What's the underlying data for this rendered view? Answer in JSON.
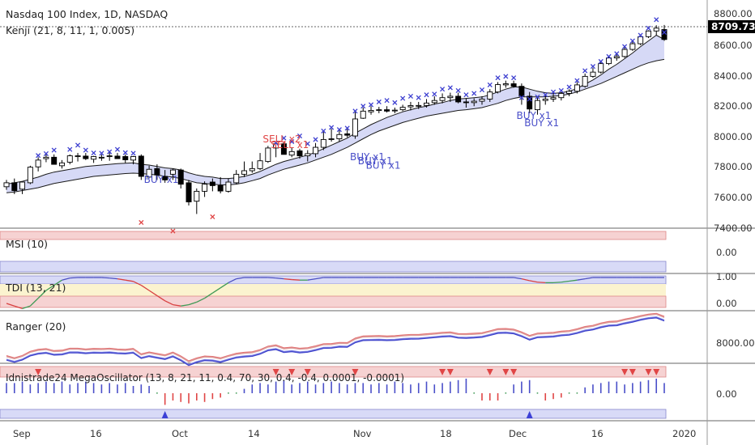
{
  "colors": {
    "up": "#ffffff",
    "down": "#000000",
    "candle_border": "#000000",
    "sell": "#e04646",
    "buy": "#4a4fc9",
    "cross": "#3d3fd0",
    "band_fill": "#cfd2f5",
    "band_green": "#d7f0d4",
    "band_line": "#1a1a1a",
    "red_zone": "#f6d2d2",
    "blue_zone": "#d8daf7",
    "yellow_zone": "#fbf3cf",
    "tdi_line": "#4b4fc0",
    "tdi_green": "#3f9a55",
    "tdi_red": "#d84040",
    "grid": "#e8e8e8",
    "axis_text": "#333333",
    "price_tag_bg": "#000000"
  },
  "header": {
    "title": "Nasdaq 100 Index, 1D, NASDAQ",
    "kenji": "Kenji (21, 8, 11, 1, 0.005)"
  },
  "price_tag": "8709.73",
  "panels": {
    "msi": "MSI (10)",
    "tdi": "TDI (13, 21)",
    "ranger": "Ranger (20)",
    "mega": "Idnistrade24 MegaOscillator (13, 8, 21, 11, 0.4, 70, 30, 0.4, -0.4, 0.0001, -0.0001)"
  },
  "axis_labels": {
    "price": [
      "8800.00",
      "8600.00",
      "8400.00",
      "8200.00",
      "8000.00",
      "7800.00",
      "7600.00",
      "7400.00"
    ],
    "msi": [
      "0.00"
    ],
    "tdi": [
      "1.00",
      "0.00"
    ],
    "ranger": [
      "8000.00"
    ],
    "mega": [
      "0.00"
    ],
    "time": [
      "Sep",
      "16",
      "Oct",
      "14",
      "Nov",
      "18",
      "Dec",
      "16",
      "2020"
    ]
  },
  "chart_data": {
    "type": "candlestick",
    "title": "Nasdaq 100 Index, 1D, NASDAQ",
    "ylim": [
      7380,
      8880
    ],
    "last_price": 8709.73,
    "dates": [
      "2019-08-29",
      "2019-08-30",
      "2019-09-03",
      "2019-09-04",
      "2019-09-05",
      "2019-09-06",
      "2019-09-09",
      "2019-09-10",
      "2019-09-11",
      "2019-09-12",
      "2019-09-13",
      "2019-09-16",
      "2019-09-17",
      "2019-09-18",
      "2019-09-19",
      "2019-09-20",
      "2019-09-23",
      "2019-09-24",
      "2019-09-25",
      "2019-09-26",
      "2019-09-27",
      "2019-09-30",
      "2019-10-01",
      "2019-10-02",
      "2019-10-03",
      "2019-10-04",
      "2019-10-07",
      "2019-10-08",
      "2019-10-09",
      "2019-10-10",
      "2019-10-11",
      "2019-10-14",
      "2019-10-15",
      "2019-10-16",
      "2019-10-17",
      "2019-10-18",
      "2019-10-21",
      "2019-10-22",
      "2019-10-23",
      "2019-10-24",
      "2019-10-25",
      "2019-10-28",
      "2019-10-29",
      "2019-10-30",
      "2019-10-31",
      "2019-11-01",
      "2019-11-04",
      "2019-11-05",
      "2019-11-06",
      "2019-11-07",
      "2019-11-08",
      "2019-11-11",
      "2019-11-12",
      "2019-11-13",
      "2019-11-14",
      "2019-11-15",
      "2019-11-18",
      "2019-11-19",
      "2019-11-20",
      "2019-11-21",
      "2019-11-22",
      "2019-11-25",
      "2019-11-26",
      "2019-11-27",
      "2019-11-29",
      "2019-12-02",
      "2019-12-03",
      "2019-12-04",
      "2019-12-05",
      "2019-12-06",
      "2019-12-09",
      "2019-12-10",
      "2019-12-11",
      "2019-12-12",
      "2019-12-13",
      "2019-12-16",
      "2019-12-17",
      "2019-12-18",
      "2019-12-19",
      "2019-12-20",
      "2019-12-23",
      "2019-12-24",
      "2019-12-26",
      "2019-12-27"
    ],
    "open": [
      7672,
      7700,
      7655,
      7700,
      7812,
      7870,
      7880,
      7820,
      7845,
      7885,
      7888,
      7866,
      7880,
      7885,
      7888,
      7885,
      7860,
      7888,
      7740,
      7800,
      7745,
      7760,
      7790,
      7700,
      7570,
      7640,
      7705,
      7680,
      7640,
      7700,
      7760,
      7785,
      7800,
      7850,
      7945,
      7975,
      7895,
      7925,
      7890,
      7905,
      7950,
      8010,
      8010,
      8045,
      8030,
      8155,
      8200,
      8210,
      8215,
      8208,
      8215,
      8235,
      8245,
      8245,
      8265,
      8280,
      8300,
      8310,
      8270,
      8265,
      8275,
      8290,
      8340,
      8390,
      8398,
      8380,
      8310,
      8215,
      8280,
      8290,
      8300,
      8330,
      8345,
      8380,
      8450,
      8480,
      8540,
      8580,
      8590,
      8640,
      8680,
      8730,
      8770,
      8780
    ],
    "high": [
      7720,
      7730,
      7705,
      7820,
      7880,
      7900,
      7900,
      7860,
      7900,
      7910,
      7910,
      7890,
      7900,
      7920,
      7910,
      7900,
      7890,
      7900,
      7820,
      7830,
      7790,
      7800,
      7800,
      7720,
      7660,
      7710,
      7730,
      7740,
      7730,
      7790,
      7850,
      7850,
      7910,
      7960,
      7985,
      7990,
      7950,
      7940,
      7930,
      7980,
      8060,
      8080,
      8070,
      8090,
      8200,
      8230,
      8240,
      8235,
      8240,
      8230,
      8250,
      8270,
      8270,
      8290,
      8310,
      8330,
      8335,
      8335,
      8295,
      8295,
      8310,
      8360,
      8410,
      8420,
      8420,
      8400,
      8340,
      8300,
      8320,
      8330,
      8340,
      8360,
      8410,
      8470,
      8510,
      8550,
      8590,
      8610,
      8660,
      8700,
      8730,
      8775,
      8810,
      8812
    ],
    "low": [
      7650,
      7620,
      7620,
      7690,
      7780,
      7845,
      7830,
      7800,
      7830,
      7850,
      7860,
      7840,
      7855,
      7855,
      7870,
      7840,
      7830,
      7720,
      7730,
      7720,
      7700,
      7720,
      7660,
      7540,
      7480,
      7600,
      7640,
      7625,
      7630,
      7690,
      7740,
      7770,
      7790,
      7840,
      7880,
      7905,
      7880,
      7870,
      7850,
      7880,
      7930,
      7990,
      7990,
      8020,
      8010,
      8150,
      8180,
      8190,
      8195,
      8190,
      8205,
      8210,
      8220,
      8230,
      8250,
      8260,
      8270,
      8260,
      8230,
      8240,
      8250,
      8270,
      8330,
      8370,
      8370,
      8250,
      8190,
      8180,
      8250,
      8270,
      8280,
      8310,
      8330,
      8370,
      8440,
      8470,
      8530,
      8560,
      8580,
      8630,
      8670,
      8720,
      8740,
      8700
    ],
    "close": [
      7700,
      7645,
      7705,
      7810,
      7860,
      7880,
      7830,
      7840,
      7890,
      7890,
      7870,
      7885,
      7880,
      7890,
      7870,
      7862,
      7885,
      7745,
      7795,
      7755,
      7720,
      7790,
      7690,
      7565,
      7640,
      7690,
      7680,
      7642,
      7705,
      7760,
      7785,
      7800,
      7855,
      7945,
      7975,
      7900,
      7920,
      7890,
      7905,
      7950,
      8005,
      8010,
      8040,
      8035,
      8150,
      8205,
      8210,
      8215,
      8205,
      8212,
      8232,
      8244,
      8245,
      8262,
      8280,
      8300,
      8310,
      8270,
      8265,
      8275,
      8290,
      8340,
      8392,
      8398,
      8380,
      8310,
      8220,
      8280,
      8290,
      8300,
      8330,
      8345,
      8390,
      8450,
      8480,
      8540,
      8580,
      8590,
      8640,
      8680,
      8730,
      8770,
      8790,
      8710
    ],
    "band_upper": [
      7690,
      7700,
      7710,
      7725,
      7740,
      7760,
      7775,
      7785,
      7795,
      7805,
      7815,
      7820,
      7825,
      7830,
      7835,
      7838,
      7840,
      7830,
      7825,
      7815,
      7805,
      7800,
      7790,
      7770,
      7755,
      7745,
      7740,
      7730,
      7730,
      7735,
      7745,
      7760,
      7780,
      7805,
      7830,
      7850,
      7865,
      7880,
      7895,
      7915,
      7940,
      7965,
      7990,
      8015,
      8050,
      8080,
      8110,
      8135,
      8160,
      8180,
      8200,
      8215,
      8230,
      8240,
      8255,
      8265,
      8280,
      8290,
      8295,
      8300,
      8305,
      8320,
      8340,
      8360,
      8375,
      8375,
      8360,
      8345,
      8335,
      8330,
      8335,
      8345,
      8365,
      8395,
      8425,
      8460,
      8500,
      8535,
      8575,
      8615,
      8660,
      8700,
      8740,
      8710
    ],
    "band_lower": [
      7630,
      7635,
      7645,
      7655,
      7665,
      7680,
      7695,
      7705,
      7715,
      7725,
      7735,
      7745,
      7750,
      7755,
      7760,
      7765,
      7768,
      7765,
      7760,
      7755,
      7745,
      7740,
      7730,
      7715,
      7700,
      7695,
      7690,
      7685,
      7685,
      7690,
      7700,
      7715,
      7730,
      7755,
      7775,
      7795,
      7810,
      7825,
      7840,
      7860,
      7880,
      7900,
      7925,
      7950,
      7980,
      8010,
      8040,
      8065,
      8085,
      8105,
      8125,
      8140,
      8155,
      8170,
      8180,
      8190,
      8200,
      8210,
      8215,
      8222,
      8230,
      8245,
      8260,
      8280,
      8295,
      8305,
      8305,
      8305,
      8305,
      8310,
      8315,
      8325,
      8340,
      8360,
      8380,
      8400,
      8425,
      8450,
      8475,
      8500,
      8525,
      8545,
      8560,
      8570
    ],
    "cross_markers": [
      [
        4,
        7892
      ],
      [
        5,
        7905
      ],
      [
        6,
        7930
      ],
      [
        8,
        7935
      ],
      [
        9,
        7965
      ],
      [
        10,
        7930
      ],
      [
        11,
        7910
      ],
      [
        12,
        7908
      ],
      [
        13,
        7918
      ],
      [
        14,
        7935
      ],
      [
        15,
        7912
      ],
      [
        16,
        7908
      ],
      [
        17,
        7420
      ],
      [
        21,
        7360
      ],
      [
        26,
        7460
      ],
      [
        34,
        7980
      ],
      [
        35,
        8015
      ],
      [
        36,
        7990
      ],
      [
        37,
        8030
      ],
      [
        38,
        7975
      ],
      [
        39,
        8005
      ],
      [
        40,
        8065
      ],
      [
        41,
        8090
      ],
      [
        42,
        8075
      ],
      [
        43,
        8085
      ],
      [
        44,
        8205
      ],
      [
        45,
        8240
      ],
      [
        46,
        8250
      ],
      [
        47,
        8270
      ],
      [
        48,
        8280
      ],
      [
        49,
        8265
      ],
      [
        50,
        8295
      ],
      [
        51,
        8310
      ],
      [
        52,
        8300
      ],
      [
        53,
        8320
      ],
      [
        54,
        8325
      ],
      [
        55,
        8360
      ],
      [
        56,
        8370
      ],
      [
        57,
        8350
      ],
      [
        58,
        8320
      ],
      [
        59,
        8330
      ],
      [
        60,
        8355
      ],
      [
        61,
        8390
      ],
      [
        62,
        8440
      ],
      [
        63,
        8450
      ],
      [
        64,
        8440
      ],
      [
        65,
        8300
      ],
      [
        66,
        8290
      ],
      [
        67,
        8305
      ],
      [
        68,
        8320
      ],
      [
        69,
        8340
      ],
      [
        70,
        8350
      ],
      [
        71,
        8375
      ],
      [
        72,
        8420
      ],
      [
        73,
        8490
      ],
      [
        74,
        8520
      ],
      [
        75,
        8555
      ],
      [
        76,
        8590
      ],
      [
        77,
        8610
      ],
      [
        78,
        8660
      ],
      [
        79,
        8700
      ],
      [
        80,
        8740
      ],
      [
        81,
        8790
      ],
      [
        82,
        8850
      ],
      [
        83,
        8760
      ]
    ],
    "signals": [
      {
        "idx": 20,
        "text": "BUY x1",
        "type": "buy",
        "price": 7700
      },
      {
        "idx": 35,
        "text": "SELL x2",
        "type": "sell",
        "price": 7985
      },
      {
        "idx": 36,
        "text": "SELL x1",
        "type": "sell",
        "price": 7945
      },
      {
        "idx": 46,
        "text": "BUY x1",
        "type": "buy",
        "price": 7860
      },
      {
        "idx": 47,
        "text": "BUY x1",
        "type": "buy",
        "price": 7830
      },
      {
        "idx": 48,
        "text": "BUY x1",
        "type": "buy",
        "price": 7800
      },
      {
        "idx": 67,
        "text": "BUY x1",
        "type": "buy",
        "price": 8150
      },
      {
        "idx": 68,
        "text": "BUY x1",
        "type": "buy",
        "price": 8100
      }
    ],
    "tdi": [
      0.0,
      -0.1,
      -0.2,
      -0.1,
      0.2,
      0.5,
      0.7,
      0.9,
      0.98,
      1.0,
      1.0,
      1.0,
      1.0,
      0.98,
      0.95,
      0.9,
      0.85,
      0.7,
      0.5,
      0.3,
      0.1,
      -0.05,
      -0.1,
      -0.05,
      0.05,
      0.2,
      0.4,
      0.6,
      0.8,
      0.95,
      1.0,
      1.0,
      1.0,
      1.0,
      0.98,
      0.95,
      0.92,
      0.9,
      0.9,
      0.95,
      1.0,
      1.0,
      1.0,
      1.0,
      1.0,
      1.0,
      1.0,
      1.0,
      1.0,
      1.0,
      1.0,
      1.0,
      1.0,
      1.0,
      1.0,
      1.0,
      1.0,
      1.0,
      1.0,
      1.0,
      1.0,
      1.0,
      1.0,
      1.0,
      1.0,
      0.95,
      0.88,
      0.82,
      0.8,
      0.8,
      0.82,
      0.86,
      0.9,
      0.95,
      1.0,
      1.0,
      1.0,
      1.0,
      1.0,
      1.0,
      1.0,
      1.0,
      1.0,
      1.0
    ],
    "mega": [
      0.7,
      0.7,
      0.8,
      0.6,
      0.7,
      0.8,
      0.7,
      0.8,
      0.6,
      0.7,
      0.8,
      0.7,
      0.6,
      0.7,
      0.6,
      0.7,
      0.5,
      0.6,
      0.5,
      0.05,
      -0.8,
      -0.5,
      -0.6,
      -0.7,
      -0.5,
      -0.6,
      -0.4,
      -0.3,
      0.05,
      0.05,
      0.3,
      0.6,
      0.7,
      0.6,
      0.8,
      0.9,
      0.6,
      0.7,
      0.8,
      0.6,
      0.7,
      0.8,
      0.7,
      0.6,
      0.7,
      0.7,
      0.6,
      0.7,
      0.6,
      0.8,
      0.7,
      0.6,
      0.7,
      0.8,
      0.6,
      0.7,
      0.8,
      0.9,
      1.0,
      0.05,
      -0.5,
      -0.5,
      -0.5,
      0.05,
      0.6,
      0.8,
      0.9,
      0.05,
      -0.5,
      -0.4,
      -0.3,
      0.05,
      0.05,
      0.4,
      0.6,
      0.7,
      0.8,
      0.8,
      0.6,
      0.7,
      0.8,
      0.9,
      1.0,
      0.7
    ],
    "mega_markers_down": [
      4,
      34,
      36,
      38,
      44,
      55,
      56,
      61,
      63,
      64,
      78,
      79,
      81,
      82
    ],
    "mega_markers_up": [
      20,
      66
    ]
  }
}
